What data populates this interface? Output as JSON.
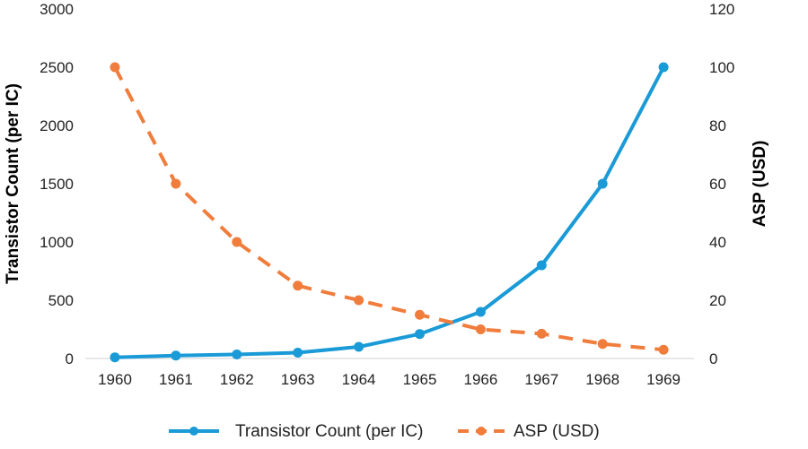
{
  "chart_data": {
    "type": "line",
    "x": [
      "1960",
      "1961",
      "1962",
      "1963",
      "1964",
      "1965",
      "1966",
      "1967",
      "1968",
      "1969"
    ],
    "series": [
      {
        "name": "Transistor Count (per IC)",
        "axis": "left",
        "color": "#1a9ad6",
        "style": "solid",
        "values": [
          10,
          25,
          35,
          50,
          100,
          210,
          400,
          800,
          1500,
          2500
        ]
      },
      {
        "name": "ASP (USD)",
        "axis": "right",
        "color": "#f07d3c",
        "style": "dashed",
        "values": [
          100,
          60,
          40,
          25,
          20,
          15,
          10,
          8.5,
          5,
          3
        ]
      }
    ],
    "ylabel": "Transistor Count (per IC)",
    "y2label": "ASP (USD)",
    "ylim": [
      0,
      3000
    ],
    "y2lim": [
      0,
      120
    ],
    "yticks": [
      "0",
      "500",
      "1000",
      "1500",
      "2000",
      "2500",
      "3000"
    ],
    "y2ticks": [
      "0",
      "20",
      "40",
      "60",
      "80",
      "100",
      "120"
    ],
    "grid": false,
    "legend_position": "bottom"
  }
}
